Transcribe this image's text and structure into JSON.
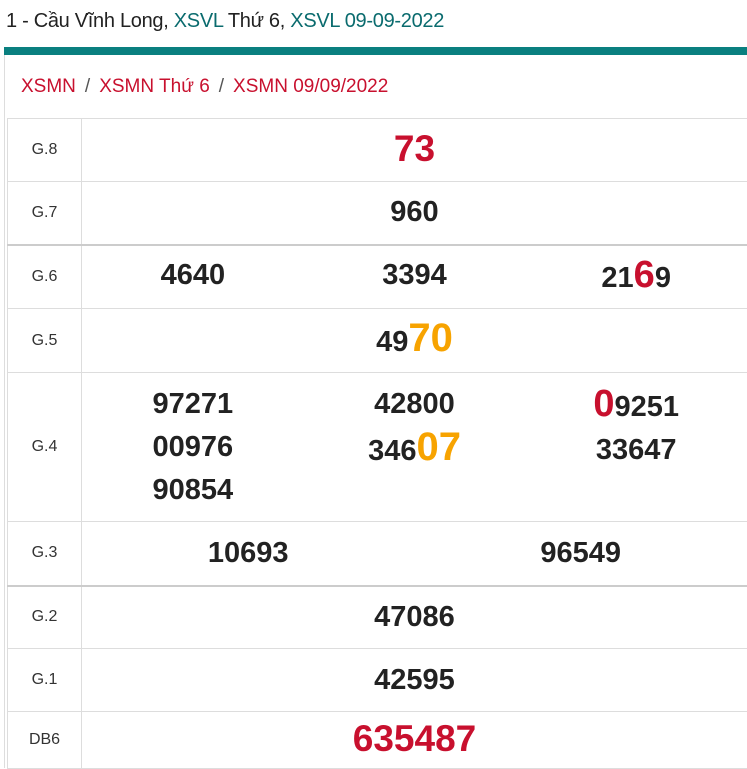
{
  "header": {
    "prefix": "1 - Cầu Vĩnh Long, ",
    "link1": "XSVL",
    "mid": " Thứ 6, ",
    "link2": "XSVL 09-09-2022"
  },
  "breadcrumb": [
    "XSMN",
    "XSMN Thứ 6",
    "XSMN 09/09/2022"
  ],
  "breadcrumb_sep": "/",
  "colors": {
    "teal": "#0a8080",
    "red": "#c8102e",
    "orange": "#f7a300"
  },
  "rows": [
    {
      "label": "G.8",
      "cols": [
        [
          [
            {
              "t": "73",
              "s": "red"
            }
          ]
        ]
      ]
    },
    {
      "label": "G.7",
      "cols": [
        [
          [
            {
              "t": "960"
            }
          ]
        ]
      ]
    },
    {
      "label": "G.6",
      "cols": [
        [
          [
            {
              "t": "4640"
            }
          ]
        ],
        [
          [
            {
              "t": "3394"
            }
          ]
        ],
        [
          [
            {
              "t": "21"
            },
            {
              "t": "6",
              "s": "hl-red"
            },
            {
              "t": "9"
            }
          ]
        ]
      ]
    },
    {
      "label": "G.5",
      "cols": [
        [
          [
            {
              "t": "49"
            },
            {
              "t": "70",
              "s": "hl-org"
            }
          ]
        ]
      ]
    },
    {
      "label": "G.4",
      "cols": [
        [
          [
            {
              "t": "97271"
            }
          ],
          [
            {
              "t": "00976"
            }
          ],
          [
            {
              "t": "90854"
            }
          ]
        ],
        [
          [
            {
              "t": "42800"
            }
          ],
          [
            {
              "t": "346"
            },
            {
              "t": "07",
              "s": "hl-org"
            }
          ]
        ],
        [
          [
            {
              "t": "0",
              "s": "hl-red"
            },
            {
              "t": "9251"
            }
          ],
          [
            {
              "t": "33647"
            }
          ]
        ]
      ]
    },
    {
      "label": "G.3",
      "cols": [
        [
          [
            {
              "t": "10693"
            }
          ]
        ],
        [
          [
            {
              "t": "96549"
            }
          ]
        ]
      ]
    },
    {
      "label": "G.2",
      "cols": [
        [
          [
            {
              "t": "47086"
            }
          ]
        ]
      ]
    },
    {
      "label": "G.1",
      "cols": [
        [
          [
            {
              "t": "42595"
            }
          ]
        ]
      ]
    },
    {
      "label": "DB6",
      "cols": [
        [
          [
            {
              "t": "635487",
              "s": "red"
            }
          ]
        ]
      ]
    }
  ]
}
